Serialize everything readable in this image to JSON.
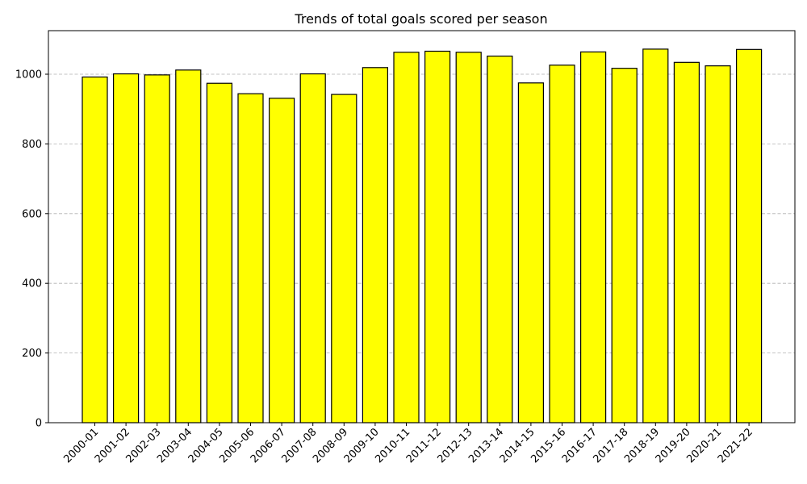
{
  "chart_data": {
    "type": "bar",
    "title": "Trends of total goals scored per season",
    "xlabel": "",
    "ylabel": "",
    "categories": [
      "2000-01",
      "2001-02",
      "2002-03",
      "2003-04",
      "2004-05",
      "2005-06",
      "2006-07",
      "2007-08",
      "2008-09",
      "2009-10",
      "2010-11",
      "2011-12",
      "2012-13",
      "2013-14",
      "2014-15",
      "2015-16",
      "2016-17",
      "2017-18",
      "2018-19",
      "2019-20",
      "2020-21",
      "2021-22"
    ],
    "values": [
      992,
      1001,
      998,
      1012,
      974,
      944,
      931,
      1001,
      942,
      1019,
      1063,
      1066,
      1063,
      1052,
      975,
      1026,
      1064,
      1017,
      1072,
      1034,
      1024,
      1071
    ],
    "ylim": [
      0,
      1125
    ],
    "yticks": [
      0,
      200,
      400,
      600,
      800,
      1000
    ],
    "grid": "y-dashed",
    "bar_color": "#ffff00",
    "bar_edge_color": "#000000"
  }
}
